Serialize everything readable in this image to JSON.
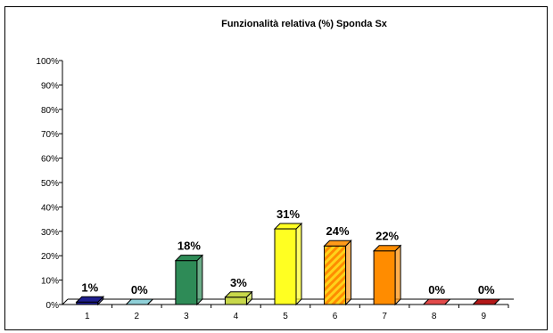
{
  "chart_data": {
    "type": "bar",
    "title": "Funzionalità relativa (%) Sponda Sx",
    "xlabel": "",
    "ylabel": "",
    "categories": [
      "1",
      "2",
      "3",
      "4",
      "5",
      "6",
      "7",
      "8",
      "9"
    ],
    "values": [
      1,
      0,
      18,
      3,
      31,
      24,
      22,
      0,
      0
    ],
    "data_labels": [
      "1%",
      "0%",
      "18%",
      "3%",
      "31%",
      "24%",
      "22%",
      "0%",
      "0%"
    ],
    "ylim": [
      0,
      100
    ],
    "yticks": [
      0,
      10,
      20,
      30,
      40,
      50,
      60,
      70,
      80,
      90,
      100
    ],
    "ytick_labels": [
      "0%",
      "10%",
      "20%",
      "30%",
      "40%",
      "50%",
      "60%",
      "70%",
      "80%",
      "90%",
      "100%"
    ],
    "grid": false,
    "legend": "none",
    "bar_colors": [
      "#1f1f8f",
      "#8fd0d8",
      "#2e8b57",
      "#c8d84a",
      "#ffff22",
      "#ff9a1a",
      "#ff8c00",
      "#e24a4a",
      "#b31818"
    ],
    "bar_patterns": [
      "solid",
      "solid",
      "solid",
      "solid",
      "solid",
      "diagonal-stripes",
      "solid",
      "solid",
      "solid"
    ]
  }
}
